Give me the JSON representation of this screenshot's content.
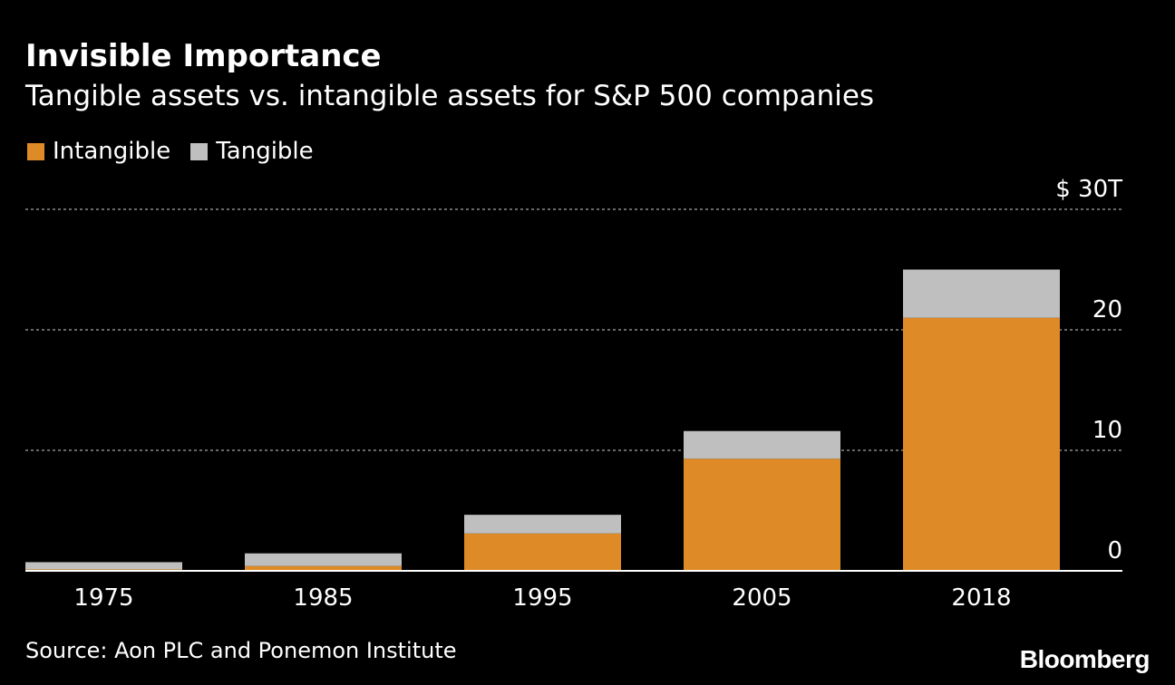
{
  "header": {
    "title": "Invisible Importance",
    "subtitle": "Tangible assets vs. intangible assets for S&P 500 companies"
  },
  "legend": {
    "items": [
      {
        "label": "Intangible",
        "color": "#DE8A26"
      },
      {
        "label": "Tangible",
        "color": "#BFBFBF"
      }
    ]
  },
  "chart_data": {
    "type": "bar",
    "stacked": true,
    "title": "Invisible Importance",
    "subtitle": "Tangible assets vs. intangible assets for S&P 500 companies",
    "categories": [
      "1975",
      "1985",
      "1995",
      "2005",
      "2018"
    ],
    "series": [
      {
        "name": "Intangible",
        "color": "#DE8A26",
        "values": [
          0.12,
          0.4,
          3.1,
          9.3,
          21.0
        ]
      },
      {
        "name": "Tangible",
        "color": "#BFBFBF",
        "values": [
          0.6,
          1.05,
          1.55,
          2.3,
          4.0
        ]
      }
    ],
    "ylim": [
      0,
      30
    ],
    "yticks": [
      0,
      10,
      20,
      30
    ],
    "ytick_labels": [
      "0",
      "10",
      "20",
      "$ 30T"
    ],
    "grid": true,
    "legend_position": "top-left",
    "yaxis_position": "right"
  },
  "footer": {
    "source": "Source: Aon PLC and Ponemon Institute",
    "brand": "Bloomberg"
  }
}
